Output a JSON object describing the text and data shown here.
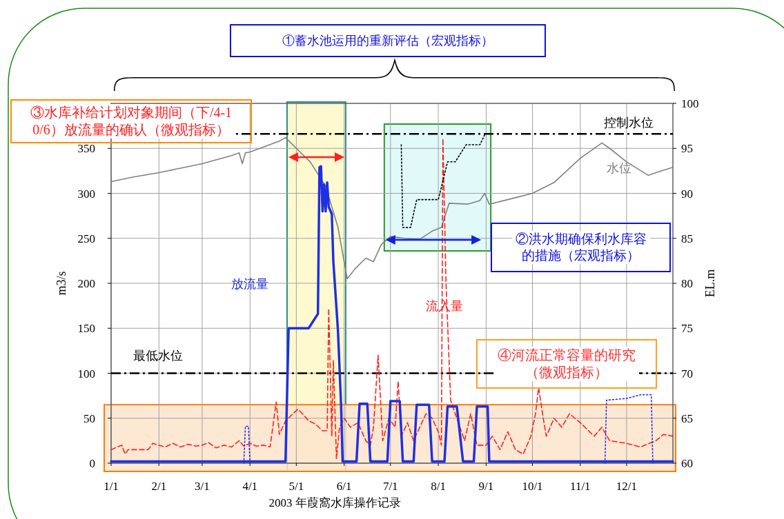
{
  "chart_data": {
    "type": "line",
    "xlabel": "2003 年葭窩水库操作记录",
    "ylabel": "m3/s",
    "y2label": "EL.m",
    "xlim": [
      "2003-01-01",
      "2003-12-31"
    ],
    "xticks": [
      {
        "value": "2003-01-01",
        "label": "1/1"
      },
      {
        "value": "2003-02-01",
        "label": "2/1"
      },
      {
        "value": "2003-03-01",
        "label": "3/1"
      },
      {
        "value": "2003-04-01",
        "label": "4/1"
      },
      {
        "value": "2003-05-01",
        "label": "5/1"
      },
      {
        "value": "2003-06-01",
        "label": "6/1"
      },
      {
        "value": "2003-07-01",
        "label": "7/1"
      },
      {
        "value": "2003-08-01",
        "label": "8/1"
      },
      {
        "value": "2003-09-01",
        "label": "9/1"
      },
      {
        "value": "2003-10-01",
        "label": "10/1"
      },
      {
        "value": "2003-11-01",
        "label": "11/1"
      },
      {
        "value": "2003-12-01",
        "label": "12/1"
      }
    ],
    "ylim": [
      0,
      400
    ],
    "yticks": [
      0,
      50,
      100,
      150,
      200,
      250,
      300,
      350
    ],
    "y2lim": [
      60,
      100
    ],
    "y2ticks": [
      60,
      65,
      70,
      75,
      80,
      85,
      90,
      95,
      100
    ],
    "grid": true,
    "legend": false,
    "marker": "none",
    "bands": [
      {
        "axis": "x",
        "from": "2003-04-25",
        "to": "2003-06-02",
        "color": "#fff8c8"
      },
      {
        "axis": "x",
        "from": "2003-06-27",
        "to": "2003-09-04",
        "color": "#dcf8f8"
      },
      {
        "axis": "y",
        "from": 0,
        "to": 65,
        "color": "#fde4cc"
      }
    ],
    "ref_lines": [
      {
        "axis": "y2",
        "value": 96.6,
        "label": "控制水位",
        "color": "#000000",
        "line_style": "dashdot"
      },
      {
        "axis": "y2",
        "value": 70,
        "label": "最低水位",
        "color": "#000000",
        "line_style": "dashdot"
      }
    ],
    "series": [
      {
        "name": "水位",
        "axis": "y2",
        "color": "#808080",
        "line_style": "solid",
        "x": [
          "2003-01-01",
          "2003-01-15",
          "2003-02-01",
          "2003-02-15",
          "2003-03-01",
          "2003-03-20",
          "2003-03-25",
          "2003-03-27",
          "2003-03-29",
          "2003-04-01",
          "2003-04-20",
          "2003-04-24",
          "2003-05-01",
          "2003-05-10",
          "2003-05-20",
          "2003-05-28",
          "2003-06-03",
          "2003-06-08",
          "2003-06-15",
          "2003-06-20",
          "2003-06-25",
          "2003-07-01",
          "2003-07-10",
          "2003-07-20",
          "2003-07-28",
          "2003-08-03",
          "2003-08-08",
          "2003-08-20",
          "2003-08-28",
          "2003-08-31",
          "2003-09-03",
          "2003-09-15",
          "2003-10-01",
          "2003-10-15",
          "2003-11-01",
          "2003-11-15",
          "2003-11-20",
          "2003-12-01",
          "2003-12-15",
          "2003-12-20",
          "2003-12-31"
        ],
        "values": [
          91.3,
          91.8,
          92.3,
          92.8,
          93.3,
          94.2,
          94.5,
          93.3,
          94.5,
          94.6,
          95.8,
          96.2,
          95.0,
          93.5,
          90.8,
          86.2,
          80.5,
          81.6,
          82.8,
          82.4,
          84.3,
          85.2,
          85.0,
          84.9,
          85.8,
          86.2,
          88.9,
          88.8,
          89.2,
          90.0,
          88.8,
          89.3,
          90.0,
          91.2,
          93.9,
          95.6,
          95.0,
          93.5,
          92.0,
          92.3,
          92.9
        ]
      },
      {
        "name": "流入量",
        "axis": "y",
        "color": "#ff2020",
        "line_style": "dashed",
        "x": [
          "2003-01-01",
          "2003-01-05",
          "2003-01-08",
          "2003-01-10",
          "2003-01-12",
          "2003-01-25",
          "2003-01-28",
          "2003-02-01",
          "2003-02-05",
          "2003-02-10",
          "2003-02-15",
          "2003-02-20",
          "2003-02-25",
          "2003-03-01",
          "2003-03-05",
          "2003-03-10",
          "2003-03-15",
          "2003-03-20",
          "2003-03-25",
          "2003-03-28",
          "2003-04-01",
          "2003-04-05",
          "2003-04-10",
          "2003-04-14",
          "2003-04-18",
          "2003-04-20",
          "2003-04-24",
          "2003-05-02",
          "2003-05-05",
          "2003-05-09",
          "2003-05-13",
          "2003-05-18",
          "2003-05-21",
          "2003-05-22",
          "2003-05-24",
          "2003-05-25",
          "2003-05-27",
          "2003-05-29",
          "2003-06-01",
          "2003-06-05",
          "2003-06-10",
          "2003-06-15",
          "2003-06-18",
          "2003-06-20",
          "2003-06-23",
          "2003-06-26",
          "2003-06-30",
          "2003-07-04",
          "2003-07-06",
          "2003-07-08",
          "2003-07-12",
          "2003-07-16",
          "2003-07-20",
          "2003-07-24",
          "2003-07-28",
          "2003-08-01",
          "2003-08-03",
          "2003-08-04",
          "2003-08-06",
          "2003-08-09",
          "2003-08-14",
          "2003-08-18",
          "2003-08-22",
          "2003-08-26",
          "2003-09-01",
          "2003-09-05",
          "2003-09-10",
          "2003-09-15",
          "2003-09-20",
          "2003-09-25",
          "2003-09-30",
          "2003-10-03",
          "2003-10-05",
          "2003-10-08",
          "2003-10-10",
          "2003-10-15",
          "2003-10-20",
          "2003-10-25",
          "2003-11-01",
          "2003-11-10",
          "2003-11-15",
          "2003-11-20",
          "2003-12-01",
          "2003-12-10",
          "2003-12-20",
          "2003-12-25",
          "2003-12-31"
        ],
        "values": [
          15,
          18,
          20,
          10,
          15,
          15,
          22,
          20,
          18,
          22,
          18,
          21,
          19,
          20,
          23,
          17,
          20,
          18,
          25,
          19,
          22,
          19,
          20,
          18,
          68,
          32,
          47,
          60,
          55,
          47,
          44,
          36,
          36,
          172,
          30,
          114,
          5,
          40,
          50,
          40,
          45,
          25,
          20,
          40,
          120,
          25,
          50,
          40,
          91,
          30,
          45,
          25,
          40,
          55,
          50,
          35,
          20,
          361,
          200,
          70,
          45,
          25,
          55,
          20,
          20,
          30,
          15,
          35,
          15,
          10,
          30,
          55,
          84,
          50,
          30,
          50,
          40,
          55,
          45,
          30,
          40,
          25,
          22,
          18,
          25,
          32,
          30
        ]
      },
      {
        "name": "放流量",
        "axis": "y",
        "color": "#2030e0",
        "line_style": "solid",
        "x": [
          "2003-01-01",
          "2003-04-24",
          "2003-04-26",
          "2003-05-09",
          "2003-05-12",
          "2003-05-15",
          "2003-05-16",
          "2003-05-17",
          "2003-05-18",
          "2003-05-19",
          "2003-05-20",
          "2003-05-21",
          "2003-05-22",
          "2003-05-24",
          "2003-05-25",
          "2003-05-28",
          "2003-05-30",
          "2003-05-31",
          "2003-06-09",
          "2003-06-11",
          "2003-06-16",
          "2003-06-18",
          "2003-06-29",
          "2003-07-01",
          "2003-07-07",
          "2003-07-09",
          "2003-07-16",
          "2003-07-18",
          "2003-07-26",
          "2003-07-28",
          "2003-08-05",
          "2003-08-07",
          "2003-08-13",
          "2003-08-17",
          "2003-08-24",
          "2003-08-26",
          "2003-09-02",
          "2003-09-03",
          "2003-12-31"
        ],
        "values": [
          2,
          2,
          150,
          150,
          158,
          166,
          329,
          330,
          280,
          310,
          280,
          312,
          285,
          277,
          224,
          147,
          65,
          2,
          2,
          66,
          66,
          2,
          2,
          69,
          69,
          2,
          2,
          65,
          65,
          2,
          2,
          63,
          63,
          2,
          2,
          63,
          63,
          2,
          2
        ]
      },
      {
        "axis": "y2",
        "color": "#000000",
        "line_style": "dotted",
        "x": [
          "2003-07-08",
          "2003-07-09",
          "2003-07-14",
          "2003-07-18",
          "2003-08-01",
          "2003-08-07",
          "2003-08-12",
          "2003-08-19",
          "2003-08-28",
          "2003-08-31"
        ],
        "values": [
          95.4,
          86.2,
          86.2,
          89.3,
          89.3,
          93.5,
          93.5,
          95.4,
          95.4,
          96.5
        ]
      },
      {
        "axis": "y",
        "color": "#2030e0",
        "line_style": "dotted",
        "x": [
          "2003-03-28",
          "2003-03-29",
          "2003-03-31",
          "2003-04-01",
          "2003-06-01",
          "2003-11-17",
          "2003-11-18",
          "2003-12-01",
          "2003-12-10",
          "2003-12-17",
          "2003-12-18"
        ],
        "values": [
          0,
          41,
          41,
          0,
          null,
          0,
          70,
          72,
          76,
          76,
          0
        ]
      }
    ],
    "annotations": [
      "①蓄水池运用的重新评估（宏观指标）",
      "②洪水期确保利水库容的措施（宏观指标）",
      "③水库补给计划对象期间（下/4-10/6）放流量的确认（微观指标）",
      "④河流正常容量的研究（微观指标）"
    ]
  }
}
